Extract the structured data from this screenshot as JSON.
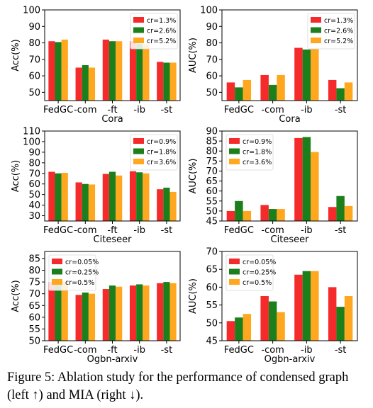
{
  "colors": {
    "series": [
      "#f52a2a",
      "#1b7f1b",
      "#ffa71e"
    ]
  },
  "caption": "Figure 5: Ablation study for the performance of condensed graph (left ↑) and MIA (right ↓).",
  "chart_data": [
    {
      "type": "bar",
      "title": "",
      "xlabel": "Cora",
      "ylabel": "Acc(%)",
      "categories": [
        "FedGC",
        "-com",
        "-ft",
        "-ib",
        "-st"
      ],
      "ylim": [
        45,
        100
      ],
      "yticks": [
        50,
        60,
        70,
        80,
        90,
        100
      ],
      "legend_position": "top-right",
      "grid": false,
      "series": [
        {
          "name": "cr=1.3%",
          "values": [
            81.0,
            65.0,
            82.0,
            81.0,
            68.5
          ]
        },
        {
          "name": "cr=2.6%",
          "values": [
            80.5,
            66.5,
            81.0,
            79.5,
            68.0
          ]
        },
        {
          "name": "cr=5.2%",
          "values": [
            82.0,
            65.0,
            81.0,
            79.0,
            68.0
          ]
        }
      ]
    },
    {
      "type": "bar",
      "title": "",
      "xlabel": "Cora",
      "ylabel": "AUC(%)",
      "categories": [
        "FedGC",
        "-com",
        "-ib",
        "-st"
      ],
      "ylim": [
        45,
        100
      ],
      "yticks": [
        50,
        60,
        70,
        80,
        90,
        100
      ],
      "legend_position": "top-right",
      "grid": false,
      "series": [
        {
          "name": "cr=1.3%",
          "values": [
            56.0,
            60.5,
            77.0,
            57.5
          ]
        },
        {
          "name": "cr=2.6%",
          "values": [
            53.0,
            54.5,
            76.0,
            52.5
          ]
        },
        {
          "name": "cr=5.2%",
          "values": [
            57.5,
            60.5,
            76.5,
            56.0
          ]
        }
      ]
    },
    {
      "type": "bar",
      "title": "",
      "xlabel": "Citeseer",
      "ylabel": "Acc(%)",
      "categories": [
        "FedGC",
        "-com",
        "-ft",
        "-ib",
        "-st"
      ],
      "ylim": [
        25,
        110
      ],
      "yticks": [
        30,
        40,
        50,
        60,
        70,
        80,
        90,
        100,
        110
      ],
      "legend_position": "top-right",
      "grid": false,
      "series": [
        {
          "name": "cr=0.9%",
          "values": [
            71.5,
            61.5,
            69.5,
            72.0,
            55.0
          ]
        },
        {
          "name": "cr=1.8%",
          "values": [
            70.0,
            60.0,
            71.5,
            71.0,
            56.5
          ]
        },
        {
          "name": "cr=3.6%",
          "values": [
            70.5,
            59.5,
            68.0,
            70.0,
            52.5
          ]
        }
      ]
    },
    {
      "type": "bar",
      "title": "",
      "xlabel": "Citeseer",
      "ylabel": "AUC(%)",
      "categories": [
        "FedGC",
        "-com",
        "-ib",
        "-st"
      ],
      "ylim": [
        45,
        90
      ],
      "yticks": [
        45,
        50,
        55,
        60,
        65,
        70,
        75,
        80,
        85,
        90
      ],
      "legend_position": "top-left",
      "grid": false,
      "series": [
        {
          "name": "cr=0.9%",
          "values": [
            50.0,
            53.0,
            86.5,
            52.0
          ]
        },
        {
          "name": "cr=1.8%",
          "values": [
            55.0,
            51.0,
            87.0,
            57.5
          ]
        },
        {
          "name": "cr=3.6%",
          "values": [
            50.0,
            51.0,
            79.5,
            52.5
          ]
        }
      ]
    },
    {
      "type": "bar",
      "title": "",
      "xlabel": "Ogbn-arxiv",
      "ylabel": "Acc(%)",
      "categories": [
        "FedGC",
        "-com",
        "-ft",
        "-ib",
        "-st"
      ],
      "ylim": [
        50,
        88
      ],
      "yticks": [
        50,
        55,
        60,
        65,
        70,
        75,
        80,
        85
      ],
      "legend_position": "top-left",
      "grid": false,
      "series": [
        {
          "name": "cr=0.05%",
          "values": [
            75.0,
            69.5,
            72.0,
            73.5,
            74.5
          ]
        },
        {
          "name": "cr=0.25%",
          "values": [
            75.5,
            70.5,
            73.5,
            74.0,
            75.0
          ]
        },
        {
          "name": "cr=0.5%",
          "values": [
            75.0,
            70.0,
            73.0,
            73.5,
            74.5
          ]
        }
      ]
    },
    {
      "type": "bar",
      "title": "",
      "xlabel": "Ogbn-arxiv",
      "ylabel": "AUC(%)",
      "categories": [
        "FedGC",
        "-com",
        "-ib",
        "-st"
      ],
      "ylim": [
        45,
        70
      ],
      "yticks": [
        45,
        50,
        55,
        60,
        65,
        70
      ],
      "legend_position": "top-left",
      "grid": false,
      "series": [
        {
          "name": "cr=0.05%",
          "values": [
            50.5,
            57.5,
            63.5,
            60.0
          ]
        },
        {
          "name": "cr=0.25%",
          "values": [
            51.5,
            56.0,
            64.5,
            54.5
          ]
        },
        {
          "name": "cr=0.5%",
          "values": [
            52.5,
            53.0,
            64.5,
            57.5
          ]
        }
      ]
    }
  ]
}
